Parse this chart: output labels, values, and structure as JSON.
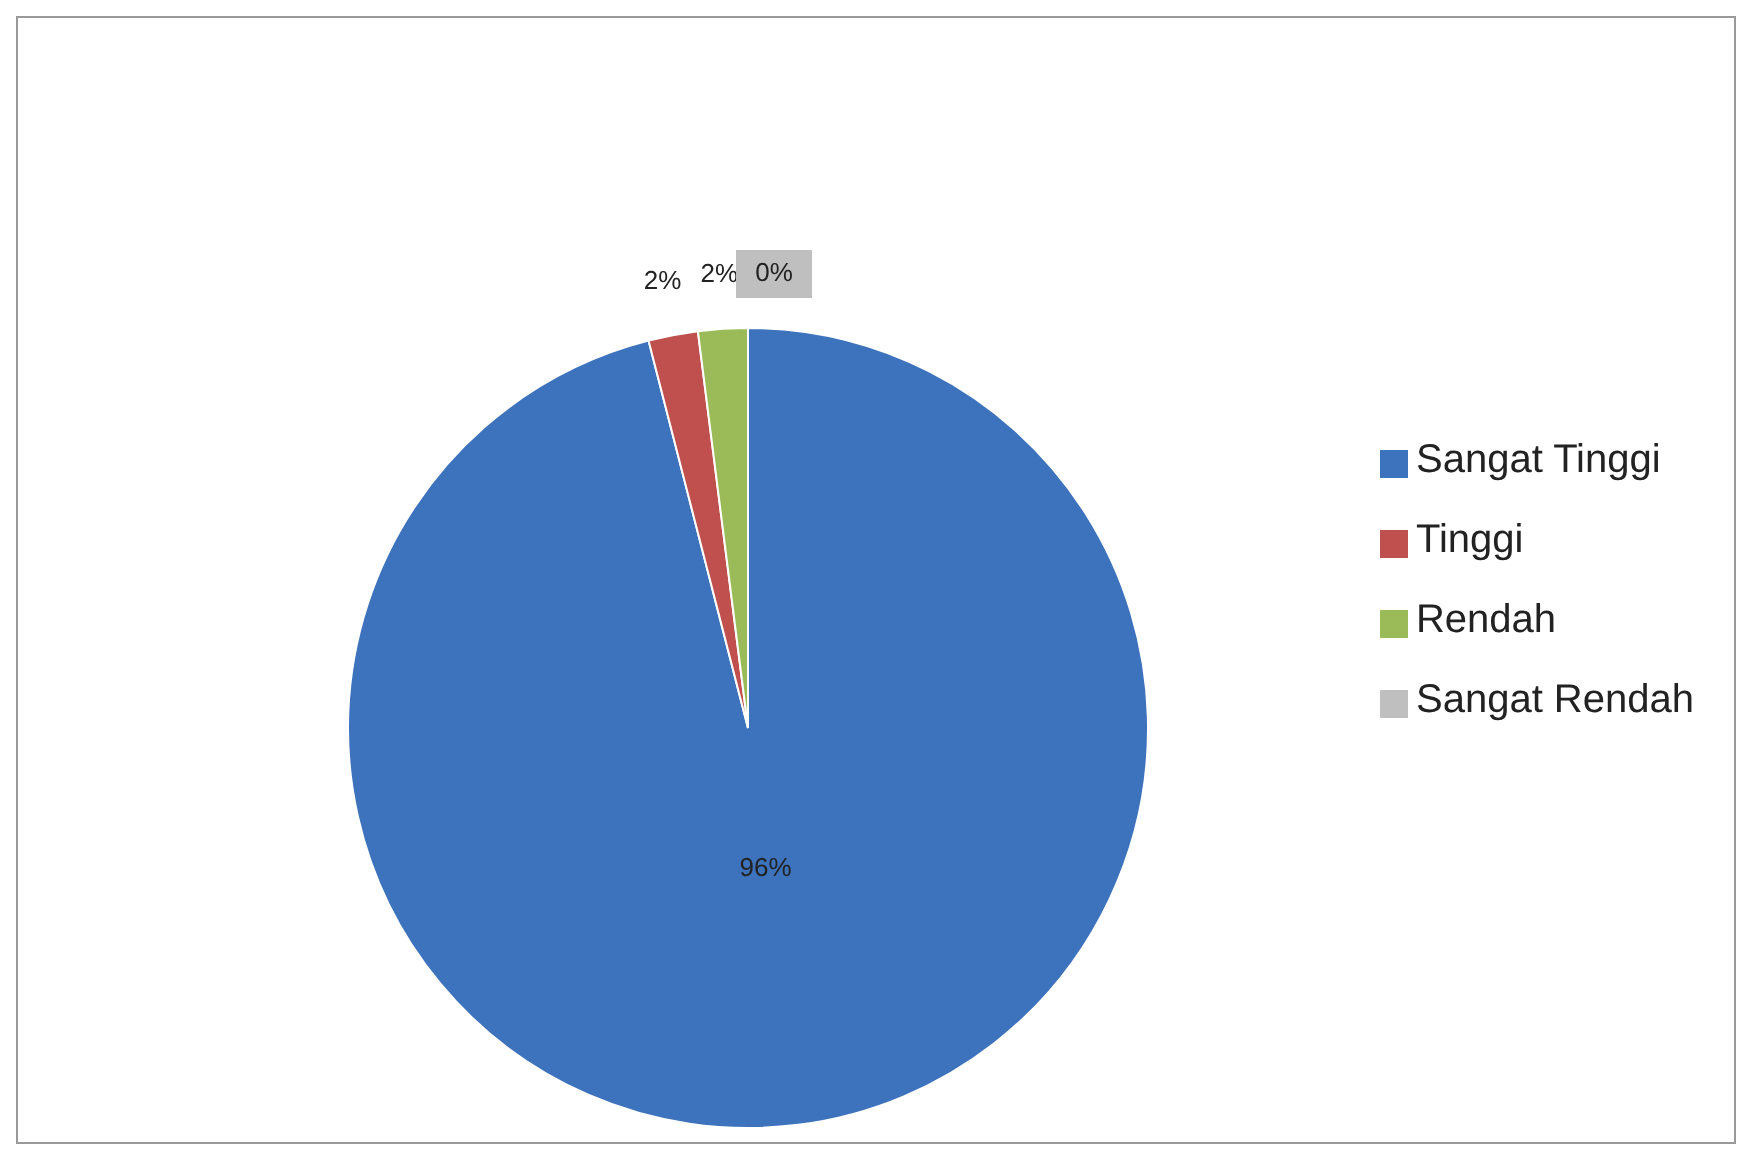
{
  "chart_data": {
    "type": "pie",
    "categories": [
      "Sangat Tinggi",
      "Tinggi",
      "Rendah",
      "Sangat Rendah"
    ],
    "values": [
      96,
      2,
      2,
      0
    ],
    "colors": [
      "#3d72bd",
      "#c0504d",
      "#9bbb59",
      "#bfbfbf"
    ],
    "value_labels": [
      "96%",
      "2%",
      "2%",
      "0%"
    ],
    "legend": "right"
  }
}
